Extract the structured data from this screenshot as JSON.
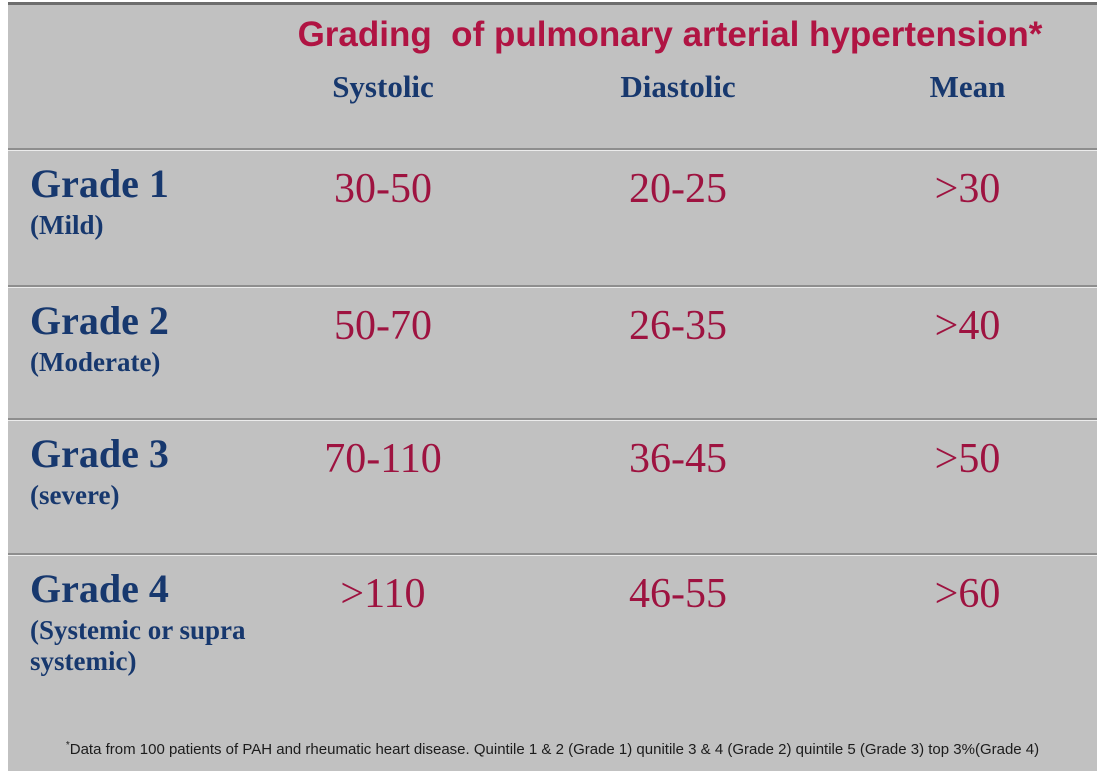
{
  "colors": {
    "panel_background": "#c1c1c1",
    "title_crimson": "#b01443",
    "value_crimson": "#9e1340",
    "heading_navy": "#17386e",
    "footnote_text": "#1c1c1c",
    "outer_border": "#ffffff",
    "separator": "#8e8e8e"
  },
  "header": {
    "title": "Grading  of pulmonary arterial hypertension*"
  },
  "table": {
    "columns": [
      "Systolic",
      "Diastolic",
      "Mean"
    ],
    "rows": [
      {
        "grade": "Grade 1",
        "qualifier": "(Mild)",
        "systolic": "30-50",
        "diastolic": "20-25",
        "mean": ">30"
      },
      {
        "grade": "Grade 2",
        "qualifier": "(Moderate)",
        "systolic": "50-70",
        "diastolic": "26-35",
        "mean": ">40"
      },
      {
        "grade": "Grade 3",
        "qualifier": "(severe)",
        "systolic": "70-110",
        "diastolic": "36-45",
        "mean": ">50"
      },
      {
        "grade": "Grade 4",
        "qualifier": "(Systemic or supra systemic)",
        "systolic": ">110",
        "diastolic": "46-55",
        "mean": ">60"
      }
    ]
  },
  "footnote": {
    "asterisk": "*",
    "text": "Data from 100 patients of PAH and rheumatic heart disease. Quintile 1 & 2 (Grade 1) qunitile 3 & 4 (Grade 2) quintile 5 (Grade 3)  top 3%(Grade 4)"
  }
}
